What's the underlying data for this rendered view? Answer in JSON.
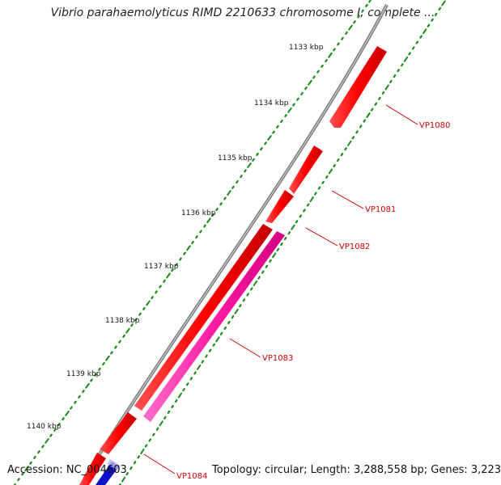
{
  "title": "Vibrio parahaemolyticus RIMD 2210633 chromosome I, complete ...",
  "footer": {
    "accession": "Accession: NC_004603",
    "summary": "Topology: circular; Length: 3,288,558 bp; Genes: 3,223"
  },
  "ticks": [
    "1133 kbp",
    "1134 kbp",
    "1135 kbp",
    "1136 kbp",
    "1137 kbp",
    "1138 kbp",
    "1139 kbp",
    "1140 kbp"
  ],
  "genes": [
    {
      "name": "VP1080",
      "color": "#ff0000"
    },
    {
      "name": "VP1081",
      "color": "#ff0000"
    },
    {
      "name": "VP1082",
      "color": "#ff0000"
    },
    {
      "name": "VP1083",
      "color": "#ff1aa3"
    },
    {
      "name": "VP1084",
      "color": "#ff0000"
    }
  ],
  "colors": {
    "backbone": "#8a8a8a",
    "gene_forward": "#ff0000",
    "gene_highlight": "#ff1aa3",
    "gene_reverse": "#1010cc",
    "ruler": "#1a8a1a",
    "label": "#d40000"
  }
}
